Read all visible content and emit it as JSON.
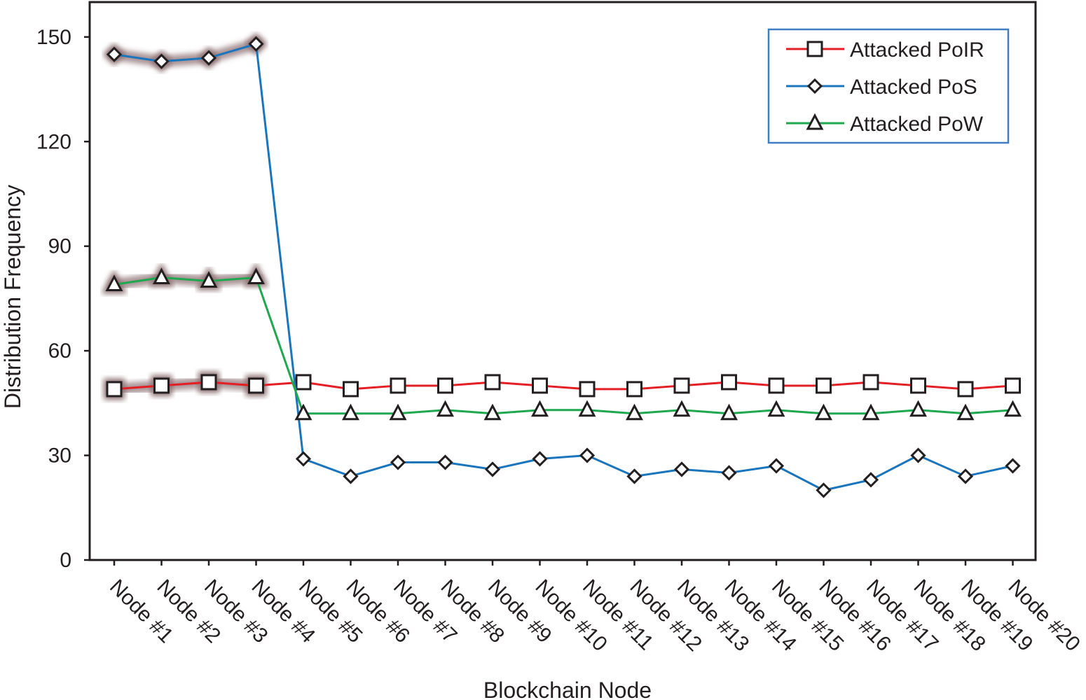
{
  "chart_data": {
    "type": "line",
    "title": "",
    "xlabel": "Blockchain Node",
    "ylabel": "Distribution Frequency",
    "ylim": [
      0,
      160
    ],
    "yticks": [
      0,
      30,
      60,
      90,
      120,
      150
    ],
    "grid": false,
    "legend_position": "top-right",
    "categories": [
      "Node #1",
      "Node #2",
      "Node #3",
      "Node #4",
      "Node #5",
      "Node #6",
      "Node #7",
      "Node #8",
      "Node #9",
      "Node #10",
      "Node #11",
      "Node #12",
      "Node #13",
      "Node #14",
      "Node #15",
      "Node #16",
      "Node #17",
      "Node #18",
      "Node #19",
      "Node #20"
    ],
    "highlighted_categories": [
      "Node #1",
      "Node #2",
      "Node #3",
      "Node #4"
    ],
    "series": [
      {
        "name": "Attacked PoIR",
        "color": "#e31e24",
        "marker": "square",
        "values": [
          49,
          50,
          51,
          50,
          51,
          49,
          50,
          50,
          51,
          50,
          49,
          49,
          50,
          51,
          50,
          50,
          51,
          50,
          49,
          50
        ]
      },
      {
        "name": "Attacked PoS",
        "color": "#1b75bc",
        "marker": "diamond",
        "values": [
          145,
          143,
          144,
          148,
          29,
          24,
          28,
          28,
          26,
          29,
          30,
          24,
          26,
          25,
          27,
          20,
          23,
          30,
          24,
          27
        ]
      },
      {
        "name": "Attacked PoW",
        "color": "#1fa84f",
        "marker": "triangle",
        "values": [
          79,
          81,
          80,
          81,
          42,
          42,
          42,
          43,
          42,
          43,
          43,
          42,
          43,
          42,
          43,
          42,
          42,
          43,
          42,
          43
        ]
      }
    ],
    "legend_border_color": "#3f7ec1",
    "highlight_glow_color": "#8c6f72"
  }
}
